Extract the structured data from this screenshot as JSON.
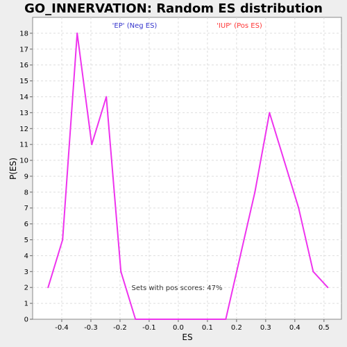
{
  "chart_data": {
    "type": "line",
    "title": "GO_INNERVATION: Random ES distribution",
    "xlabel": "ES",
    "ylabel": "P(ES)",
    "xlim": [
      -0.5,
      0.56
    ],
    "ylim": [
      0,
      19
    ],
    "xticks": [
      "-0.4",
      "-0.3",
      "-0.2",
      "-0.1",
      "0.0",
      "0.1",
      "0.2",
      "0.3",
      "0.4",
      "0.5"
    ],
    "xtick_values": [
      -0.4,
      -0.3,
      -0.2,
      -0.1,
      0.0,
      0.1,
      0.2,
      0.3,
      0.4,
      0.5
    ],
    "yticks": [
      0,
      1,
      2,
      3,
      4,
      5,
      6,
      7,
      8,
      9,
      10,
      11,
      12,
      13,
      14,
      15,
      16,
      17,
      18
    ],
    "grid": true,
    "legend": [
      {
        "label": "'EP' (Neg ES)",
        "color": "#3333cc"
      },
      {
        "label": "'IUP' (Pos ES)",
        "color": "#ff3333"
      }
    ],
    "annotation": "Sets with pos scores: 47%",
    "line_color": "#ee33ee",
    "series": [
      {
        "x": [
          -0.447,
          -0.397,
          -0.347,
          -0.297,
          -0.247,
          -0.197,
          -0.147,
          -0.097,
          -0.047,
          0.003,
          0.053,
          0.103,
          0.163,
          0.213,
          0.263,
          0.313,
          0.363,
          0.413,
          0.463,
          0.513
        ],
        "values": [
          2,
          5,
          18,
          11,
          14,
          3,
          0,
          0,
          0,
          0,
          0,
          0,
          0,
          4,
          8,
          13,
          10,
          7,
          3,
          2
        ]
      }
    ]
  }
}
